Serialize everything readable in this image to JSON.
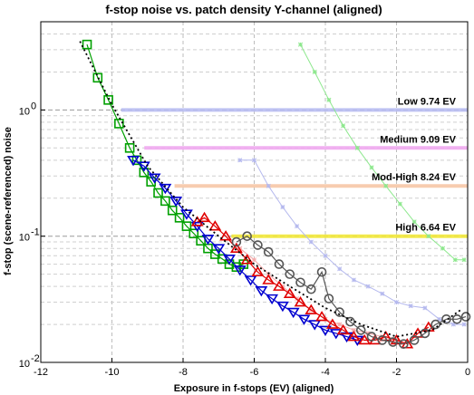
{
  "chart_data": {
    "type": "line",
    "title": "f-stop noise vs. patch density  Y-channel (aligned)",
    "xlabel": "Exposure in f-stops (EV) (aligned)",
    "ylabel": "f-stop (scene-referenced) noise",
    "xlim": [
      -12,
      0
    ],
    "ylim": [
      0.01,
      5
    ],
    "y_scale": "log",
    "grid": true,
    "xticks": [
      -12,
      -10,
      -8,
      -6,
      -4,
      -2,
      0
    ],
    "xtick_labels": [
      "-12",
      "-10",
      "-8",
      "-6",
      "-4",
      "-2",
      "0"
    ],
    "yticks": [
      0.01,
      0.1,
      1
    ],
    "ytick_labels": [
      "10",
      "10",
      "10"
    ],
    "ytick_exponents": [
      "-2",
      "-1",
      "0"
    ],
    "reference_lines": [
      {
        "label": "Low  9.74 EV",
        "y": 1.0,
        "x_start": -9.74,
        "color": "#b8bcf2"
      },
      {
        "label": "Medium  9.09 EV",
        "y": 0.5,
        "x_start": -9.09,
        "color": "#f0a8f0"
      },
      {
        "label": "Mod-High  8.24 EV",
        "y": 0.25,
        "x_start": -8.24,
        "color": "#f6c7a6"
      },
      {
        "label": "High  6.64 EV",
        "y": 0.1,
        "x_start": -6.64,
        "color": "#f2e83a"
      }
    ],
    "series": [
      {
        "color": "#00a000",
        "marker": "square",
        "points": [
          [
            -10.7,
            3.3
          ],
          [
            -10.4,
            1.8
          ],
          [
            -10.1,
            1.2
          ],
          [
            -9.8,
            0.78
          ],
          [
            -9.5,
            0.5
          ],
          [
            -9.3,
            0.4
          ],
          [
            -9.1,
            0.32
          ],
          [
            -8.9,
            0.27
          ],
          [
            -8.7,
            0.22
          ],
          [
            -8.5,
            0.19
          ],
          [
            -8.3,
            0.16
          ],
          [
            -8.1,
            0.14
          ],
          [
            -7.9,
            0.12
          ],
          [
            -7.7,
            0.105
          ],
          [
            -7.5,
            0.092
          ],
          [
            -7.3,
            0.08
          ],
          [
            -7.1,
            0.072
          ],
          [
            -6.9,
            0.066
          ],
          [
            -6.7,
            0.06
          ],
          [
            -6.5,
            0.057
          ],
          [
            -6.3,
            0.06
          ]
        ]
      },
      {
        "color": "#0000d0",
        "marker": "triangle-down",
        "points": [
          [
            -9.4,
            0.4
          ],
          [
            -9.1,
            0.36
          ],
          [
            -8.8,
            0.29
          ],
          [
            -8.5,
            0.24
          ],
          [
            -8.2,
            0.19
          ],
          [
            -7.9,
            0.15
          ],
          [
            -7.6,
            0.12
          ],
          [
            -7.3,
            0.095
          ],
          [
            -7.0,
            0.08
          ],
          [
            -6.7,
            0.066
          ],
          [
            -6.4,
            0.054
          ],
          [
            -6.1,
            0.045
          ],
          [
            -5.8,
            0.037
          ],
          [
            -5.5,
            0.032
          ],
          [
            -5.2,
            0.028
          ],
          [
            -4.9,
            0.025
          ],
          [
            -4.6,
            0.022
          ],
          [
            -4.3,
            0.02
          ],
          [
            -4.0,
            0.018
          ],
          [
            -3.7,
            0.017
          ],
          [
            -3.4,
            0.016
          ],
          [
            -3.1,
            0.015
          ]
        ]
      },
      {
        "color": "#e00000",
        "marker": "triangle-up",
        "points": [
          [
            -7.6,
            0.13
          ],
          [
            -7.4,
            0.14
          ],
          [
            -7.1,
            0.12
          ],
          [
            -6.8,
            0.1
          ],
          [
            -6.5,
            0.08
          ],
          [
            -6.2,
            0.065
          ],
          [
            -5.9,
            0.052
          ],
          [
            -5.6,
            0.045
          ],
          [
            -5.3,
            0.04
          ],
          [
            -5.0,
            0.035
          ],
          [
            -4.7,
            0.03
          ],
          [
            -4.4,
            0.026
          ],
          [
            -4.1,
            0.023
          ],
          [
            -3.8,
            0.02
          ],
          [
            -3.5,
            0.018
          ],
          [
            -3.2,
            0.016
          ],
          [
            -2.9,
            0.015
          ],
          [
            -2.6,
            0.015
          ],
          [
            -2.3,
            0.016
          ],
          [
            -2.0,
            0.015
          ],
          [
            -1.7,
            0.014
          ],
          [
            -1.4,
            0.017
          ],
          [
            -1.1,
            0.019
          ]
        ]
      },
      {
        "color": "#555555",
        "marker": "circle",
        "points": [
          [
            -6.5,
            0.09
          ],
          [
            -6.2,
            0.1
          ],
          [
            -5.9,
            0.085
          ],
          [
            -5.6,
            0.075
          ],
          [
            -5.3,
            0.06
          ],
          [
            -5.0,
            0.05
          ],
          [
            -4.7,
            0.043
          ],
          [
            -4.4,
            0.038
          ],
          [
            -4.1,
            0.052
          ],
          [
            -3.9,
            0.032
          ],
          [
            -3.6,
            0.025
          ],
          [
            -3.3,
            0.021
          ],
          [
            -3.0,
            0.018
          ],
          [
            -2.7,
            0.016
          ],
          [
            -2.4,
            0.015
          ],
          [
            -2.1,
            0.0145
          ],
          [
            -1.8,
            0.014
          ],
          [
            -1.5,
            0.015
          ],
          [
            -1.2,
            0.017
          ],
          [
            -0.9,
            0.02
          ],
          [
            -0.6,
            0.022
          ],
          [
            -0.3,
            0.022
          ],
          [
            -0.05,
            0.023
          ]
        ]
      },
      {
        "color": "#b5b9ee",
        "marker": "star",
        "points": [
          [
            -6.4,
            0.4
          ],
          [
            -6.0,
            0.4
          ],
          [
            -5.6,
            0.25
          ],
          [
            -5.2,
            0.17
          ],
          [
            -4.8,
            0.12
          ],
          [
            -4.4,
            0.09
          ],
          [
            -4.0,
            0.07
          ],
          [
            -3.6,
            0.055
          ],
          [
            -3.2,
            0.045
          ],
          [
            -2.8,
            0.04
          ],
          [
            -2.4,
            0.035
          ],
          [
            -2.0,
            0.03
          ],
          [
            -1.6,
            0.028
          ],
          [
            -1.2,
            0.027
          ],
          [
            -0.8,
            0.022
          ],
          [
            -0.4,
            0.02
          ],
          [
            -0.1,
            0.02
          ]
        ]
      },
      {
        "color": "#8ee88e",
        "marker": "star",
        "points": [
          [
            -4.7,
            3.3
          ],
          [
            -4.3,
            2.0
          ],
          [
            -3.9,
            1.2
          ],
          [
            -3.5,
            0.75
          ],
          [
            -3.1,
            0.5
          ],
          [
            -2.7,
            0.35
          ],
          [
            -2.3,
            0.25
          ],
          [
            -1.9,
            0.18
          ],
          [
            -1.5,
            0.13
          ],
          [
            -1.1,
            0.1
          ],
          [
            -0.7,
            0.08
          ],
          [
            -0.35,
            0.065
          ],
          [
            -0.1,
            0.065
          ]
        ]
      },
      {
        "color": "#f4aaaa",
        "marker": "star",
        "points": [
          [
            -6.4,
            0.08
          ],
          [
            -6.0,
            0.065
          ],
          [
            -5.6,
            0.05
          ],
          [
            -5.2,
            0.04
          ],
          [
            -4.8,
            0.032
          ],
          [
            -4.4,
            0.026
          ],
          [
            -4.0,
            0.022
          ],
          [
            -3.6,
            0.02
          ],
          [
            -3.2,
            0.018
          ],
          [
            -2.8,
            0.017
          ],
          [
            -2.4,
            0.016
          ],
          [
            -2.0,
            0.015
          ]
        ]
      },
      {
        "color": "#000000",
        "marker": "none",
        "dash": "2,3",
        "points": [
          [
            -10.9,
            3.5
          ],
          [
            -10.0,
            1.1
          ],
          [
            -9.0,
            0.36
          ],
          [
            -8.0,
            0.17
          ],
          [
            -7.0,
            0.1
          ],
          [
            -6.0,
            0.06
          ],
          [
            -5.0,
            0.04
          ],
          [
            -4.0,
            0.027
          ],
          [
            -3.0,
            0.02
          ],
          [
            -2.0,
            0.016
          ],
          [
            -1.0,
            0.018
          ],
          [
            -0.2,
            0.026
          ]
        ]
      }
    ]
  }
}
